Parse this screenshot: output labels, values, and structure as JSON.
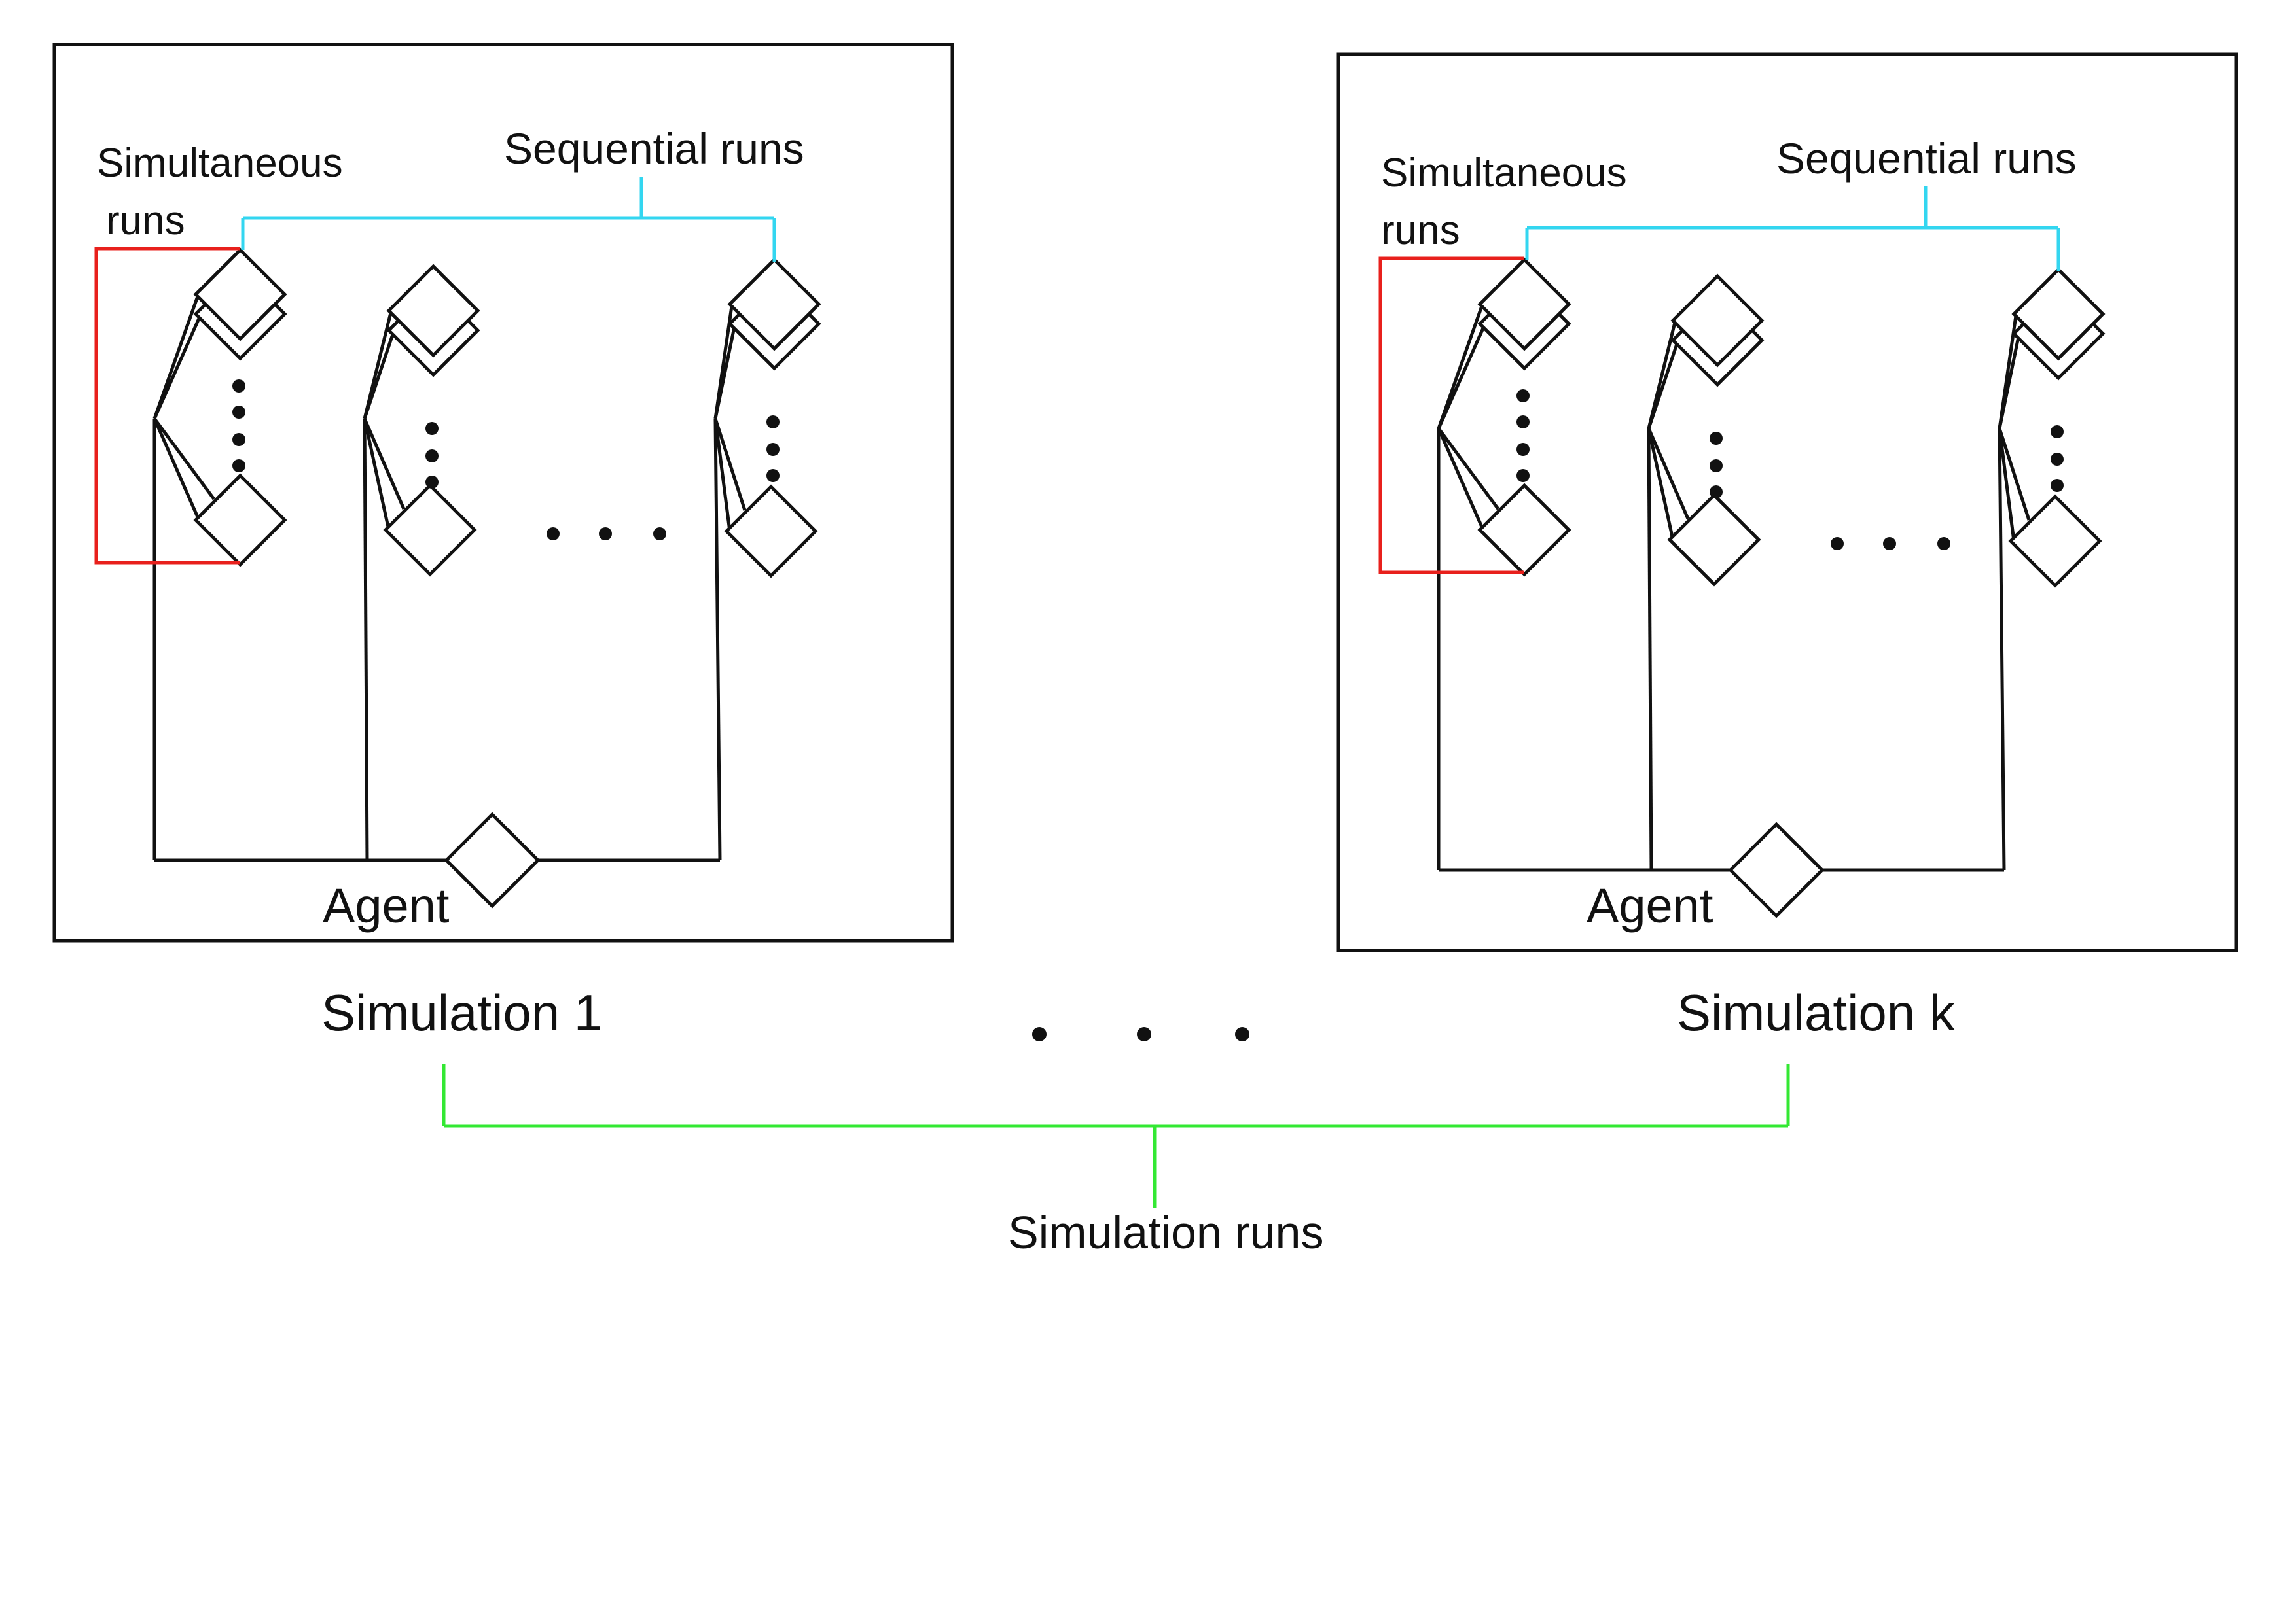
{
  "colors": {
    "line": "#111111",
    "sequential_bracket": "#33d6f0",
    "simultaneous_bracket": "#e8201c",
    "simulation_bracket": "#33e833",
    "background": "#ffffff"
  },
  "panels": [
    {
      "simultaneous_line1": "Simultaneous",
      "simultaneous_line2": "runs",
      "sequential_label": "Sequential runs",
      "agent_label": "Agent",
      "caption": "Simulation 1"
    },
    {
      "simultaneous_line1": "Simultaneous",
      "simultaneous_line2": "runs",
      "sequential_label": "Sequential runs",
      "agent_label": "Agent",
      "caption": "Simulation k"
    }
  ],
  "simulation_runs_label": "Simulation runs",
  "icons": {
    "node": "diamond-icon",
    "ellipsis": "ellipsis-dots"
  }
}
